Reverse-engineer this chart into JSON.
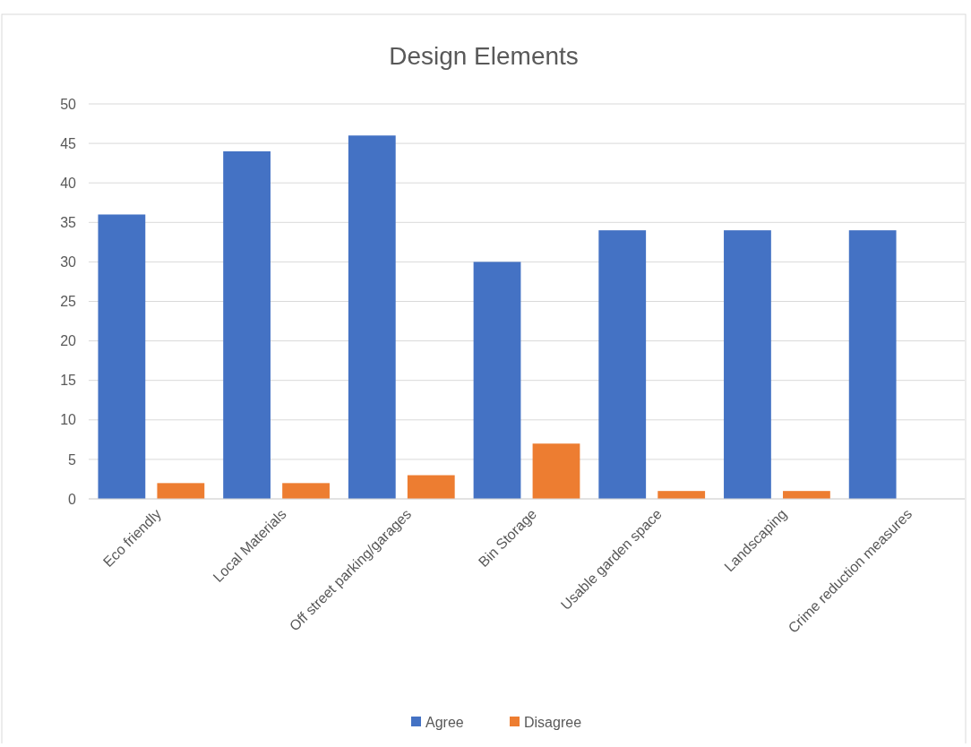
{
  "chart_data": {
    "type": "bar",
    "title": "Design Elements",
    "categories": [
      "Eco friendly",
      "Local Materials",
      "Off street parking/garages",
      "Bin Storage",
      "Usable garden space",
      "Landscaping",
      "Crime reduction measures"
    ],
    "series": [
      {
        "name": "Agree",
        "color": "#4472c4",
        "values": [
          36,
          44,
          46,
          30,
          34,
          34,
          34
        ]
      },
      {
        "name": "Disagree",
        "color": "#ed7d31",
        "values": [
          2,
          2,
          3,
          7,
          1,
          1,
          0
        ]
      }
    ],
    "ylim": [
      0,
      50
    ],
    "yticks": [
      0,
      5,
      10,
      15,
      20,
      25,
      30,
      35,
      40,
      45,
      50
    ],
    "grid": "y",
    "legend": "bottom"
  }
}
